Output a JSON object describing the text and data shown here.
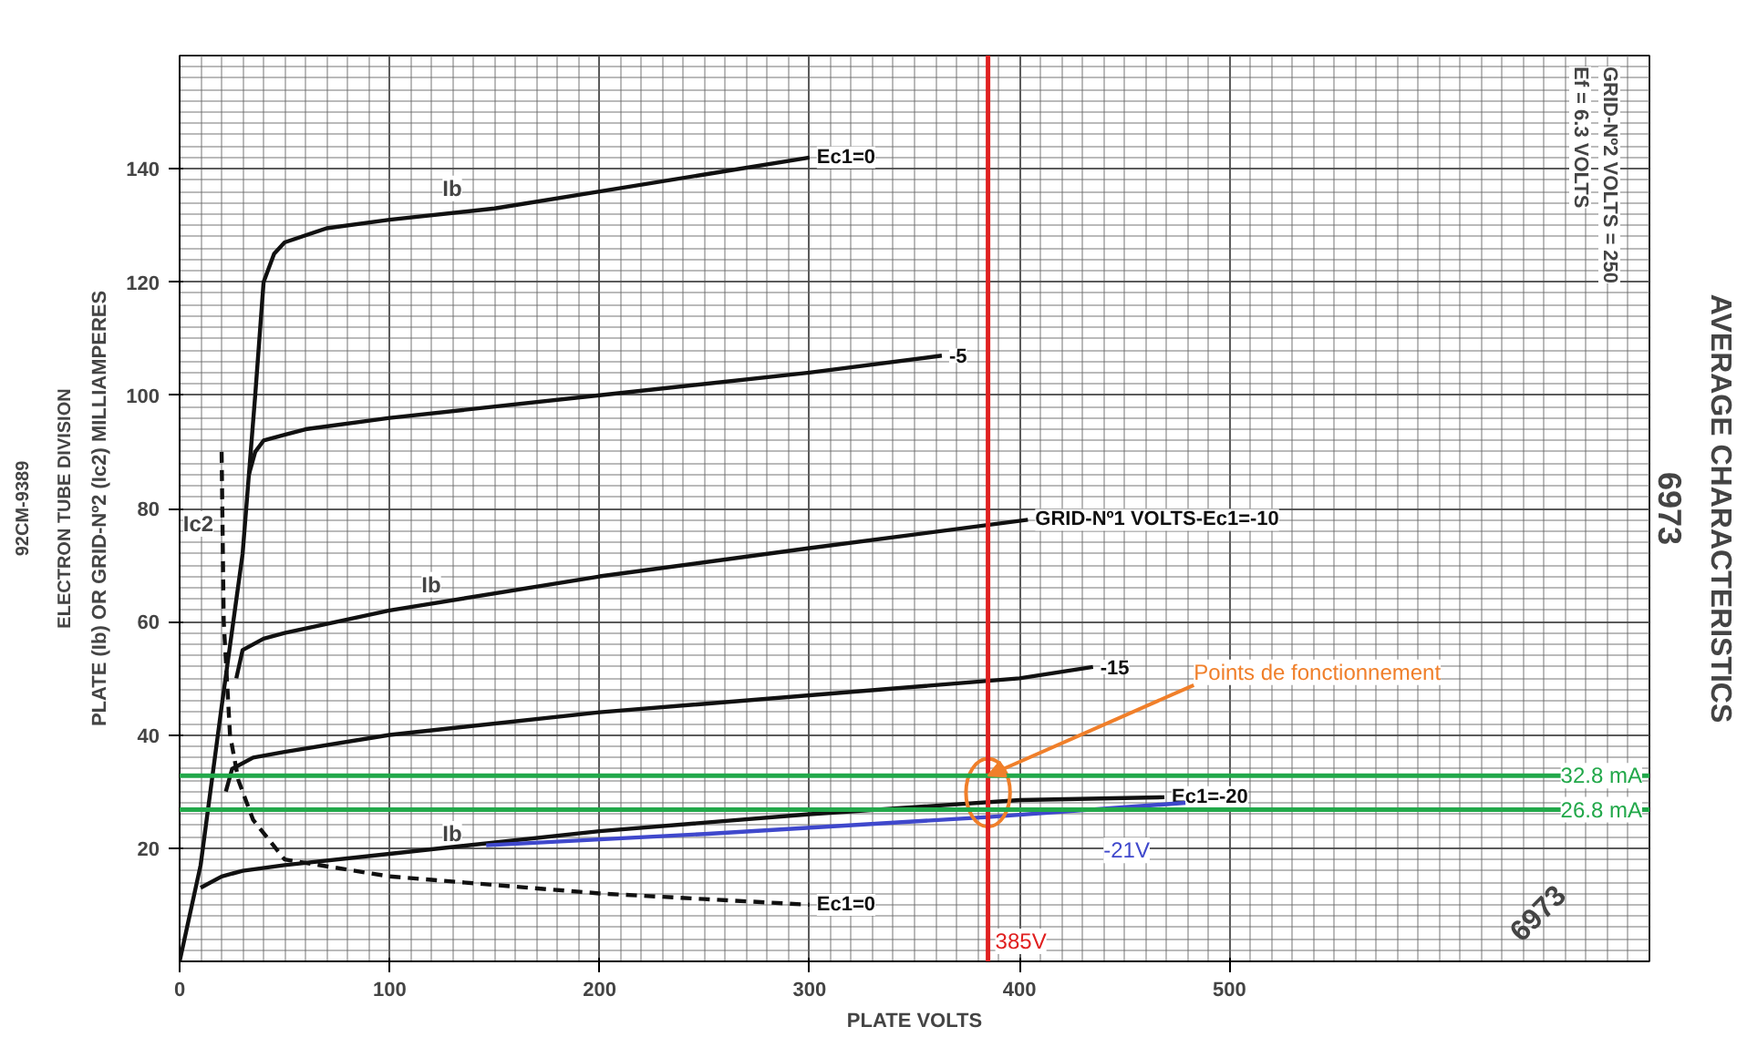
{
  "chart_data": {
    "type": "line",
    "title": "AVERAGE CHARACTERISTICS",
    "subtitle": "6973",
    "xlabel": "PLATE VOLTS",
    "ylabel": "PLATE (Ib) OR GRID-Nº2 (Ic2) MILLIAMPERES",
    "xlim": [
      0,
      700
    ],
    "ylim": [
      0,
      160
    ],
    "xticks": [
      0,
      100,
      200,
      300,
      400,
      500
    ],
    "yticks": [
      20,
      40,
      60,
      80,
      100,
      120,
      140
    ],
    "grid": true,
    "marker": "none",
    "line_style": "solid",
    "series": [
      {
        "name": "Ec1=0",
        "color": "#111111",
        "x": [
          0,
          10,
          20,
          30,
          36,
          40,
          45,
          50,
          70,
          100,
          150,
          200,
          250,
          300
        ],
        "values": [
          0,
          17,
          45,
          72,
          100,
          120,
          125,
          127,
          129.5,
          131,
          133,
          136,
          139,
          142
        ]
      },
      {
        "name": "-5",
        "color": "#111111",
        "x": [
          33,
          36,
          40,
          50,
          60,
          100,
          200,
          300,
          363
        ],
        "values": [
          86,
          90,
          92,
          93,
          94,
          96,
          100,
          104,
          107
        ]
      },
      {
        "name": "GRID-Nº1 VOLTS-Ec1=-10",
        "color": "#111111",
        "x": [
          27,
          30,
          40,
          50,
          100,
          200,
          300,
          404
        ],
        "values": [
          50,
          55,
          57,
          58,
          62,
          68,
          73,
          78
        ]
      },
      {
        "name": "-15",
        "color": "#111111",
        "x": [
          22,
          25,
          35,
          50,
          100,
          200,
          300,
          400,
          435
        ],
        "values": [
          30,
          34,
          36,
          37,
          40,
          44,
          47,
          50,
          52
        ]
      },
      {
        "name": "Ec1=-20",
        "color": "#111111",
        "x": [
          10,
          20,
          30,
          50,
          100,
          200,
          300,
          400,
          469
        ],
        "values": [
          13,
          15,
          16,
          17,
          19,
          23,
          26,
          28.5,
          29
        ]
      },
      {
        "name": "Ec1=0",
        "color": "#111111",
        "line_style": "dashed",
        "x": [
          20,
          21,
          24,
          28,
          35,
          50,
          100,
          150,
          200,
          250,
          300
        ],
        "values": [
          90,
          60,
          40,
          32,
          25,
          18,
          15,
          13.5,
          12,
          11,
          10
        ]
      },
      {
        "color": "#3f48cc",
        "x": [
          146,
          250,
          385,
          479
        ],
        "values": [
          20.5,
          22.5,
          25.5,
          28
        ]
      }
    ],
    "ref_lines": [
      {
        "axis": "x",
        "value": 385,
        "label": "385V",
        "color": "#e02020"
      },
      {
        "axis": "y",
        "value": 32.8,
        "label": "32.8 mA",
        "color": "#22a84a"
      },
      {
        "axis": "y",
        "value": 26.8,
        "label": "26.8 mA",
        "color": "#22a84a"
      }
    ],
    "annotations": [
      "ELECTRON TUBE DIVISION",
      "92CM-9389",
      "Ef = 6.3 VOLTS",
      "GRID-Nº2 VOLTS = 250",
      "6973",
      {
        "text": "Points de fonctionnement",
        "x": 385,
        "y": 32.8
      },
      {
        "text": "-21V",
        "x": 440,
        "y": 27
      },
      {
        "text": "Ib",
        "x": 120,
        "y": 133
      },
      {
        "text": "Ib",
        "x": 110,
        "y": 63
      },
      {
        "text": "Ib",
        "x": 120,
        "y": 19
      },
      {
        "text": "Ic2",
        "x": 20.5,
        "y": 75
      }
    ]
  }
}
